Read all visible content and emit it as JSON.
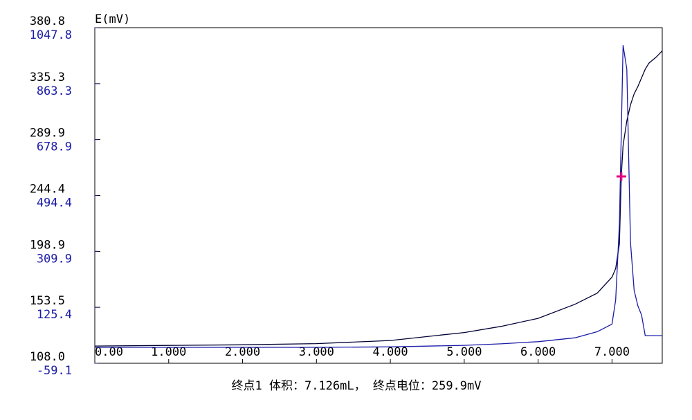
{
  "chart_data": {
    "type": "line",
    "ylabel": "E(mV)",
    "x": [
      0,
      1,
      2,
      3,
      4,
      5,
      5.5,
      6,
      6.5,
      6.8,
      7.0,
      7.05,
      7.1,
      7.126,
      7.15,
      7.2,
      7.25,
      7.3,
      7.35,
      7.4,
      7.45,
      7.5,
      7.6,
      7.68
    ],
    "series": [
      {
        "color": "#000033",
        "axis": "y",
        "values": [
          122,
          122.5,
          123,
          124,
          126.5,
          133,
          138,
          144.5,
          156,
          165,
          178,
          185,
          205,
          259.9,
          285,
          305,
          318,
          327,
          333,
          340,
          347,
          352,
          357,
          362
        ]
      },
      {
        "color": "#1a1aa8",
        "axis": "y2",
        "values": [
          -6.6,
          -6.6,
          -6.6,
          -6.6,
          -5,
          0,
          5,
          12,
          25,
          45,
          70,
          150,
          400,
          700,
          990,
          911,
          340,
          181,
          130,
          100,
          32,
          32,
          32,
          32
        ]
      }
    ],
    "endpoint": {
      "x": 7.126,
      "y": 259.9,
      "color": "#e6007e"
    },
    "annotation": "终点1 体积：7.126mL， 终点电位：259.9mV",
    "xlim": [
      0,
      7.68
    ],
    "xticks": [
      {
        "value": 0,
        "label": "0.00"
      },
      {
        "value": 1,
        "label": "1.000"
      },
      {
        "value": 2,
        "label": "2.000"
      },
      {
        "value": 3,
        "label": "3.000"
      },
      {
        "value": 4,
        "label": "4.000"
      },
      {
        "value": 5,
        "label": "5.000"
      },
      {
        "value": 6,
        "label": "6.000"
      },
      {
        "value": 7,
        "label": "7.000"
      }
    ],
    "ylim": [
      108.0,
      380.8
    ],
    "yticks": [
      {
        "value": 108.0,
        "label": "108.0"
      },
      153.5,
      198.9,
      244.4,
      289.9,
      335.3,
      380.8
    ],
    "y2lim": [
      -59.1,
      1047.8
    ],
    "y2ticks": [
      -59.1,
      125.4,
      309.9,
      494.4,
      678.9,
      863.3,
      1047.8
    ],
    "y2color": "#1a1aa8"
  }
}
